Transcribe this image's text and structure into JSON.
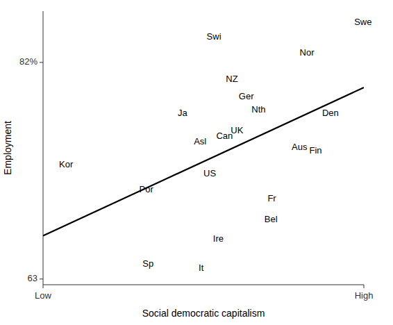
{
  "chart_data": {
    "type": "scatter",
    "xlabel": "Social democratic capitalism",
    "ylabel": "Employment",
    "xlim": [
      0,
      10
    ],
    "xticks": [
      {
        "value": 0,
        "label": "Low"
      },
      {
        "value": 10,
        "label": "High"
      }
    ],
    "ylim": [
      62.5,
      86.5
    ],
    "yticks": [
      63,
      {
        "value": 82,
        "label": "82%"
      }
    ],
    "grid": false,
    "series": [
      {
        "type": "scatter",
        "color": "#000000",
        "labels": [
          "Swe",
          "Swi",
          "Nor",
          "NZ",
          "Ger",
          "Nth",
          "Den",
          "Ja",
          "UK",
          "Can",
          "Asl",
          "Aus",
          "Fin",
          "Kor",
          "US",
          "Por",
          "Fr",
          "Bel",
          "Ire",
          "Sp",
          "It"
        ],
        "x": [
          9.7,
          5.1,
          8.0,
          5.7,
          6.1,
          6.5,
          8.7,
          4.2,
          5.85,
          5.4,
          4.7,
          7.75,
          8.3,
          0.5,
          5.0,
          3.0,
          7.0,
          6.9,
          5.3,
          3.1,
          4.85
        ],
        "values": [
          85.5,
          84.2,
          82.8,
          80.5,
          79.0,
          77.8,
          77.5,
          77.5,
          76.0,
          75.5,
          75.0,
          74.5,
          74.2,
          73.0,
          72.2,
          70.8,
          70.0,
          68.2,
          66.5,
          64.3,
          63.9
        ]
      },
      {
        "type": "line",
        "color": "#000000",
        "x": [
          0.0,
          10.0
        ],
        "values": [
          66.8,
          79.8
        ]
      }
    ]
  }
}
